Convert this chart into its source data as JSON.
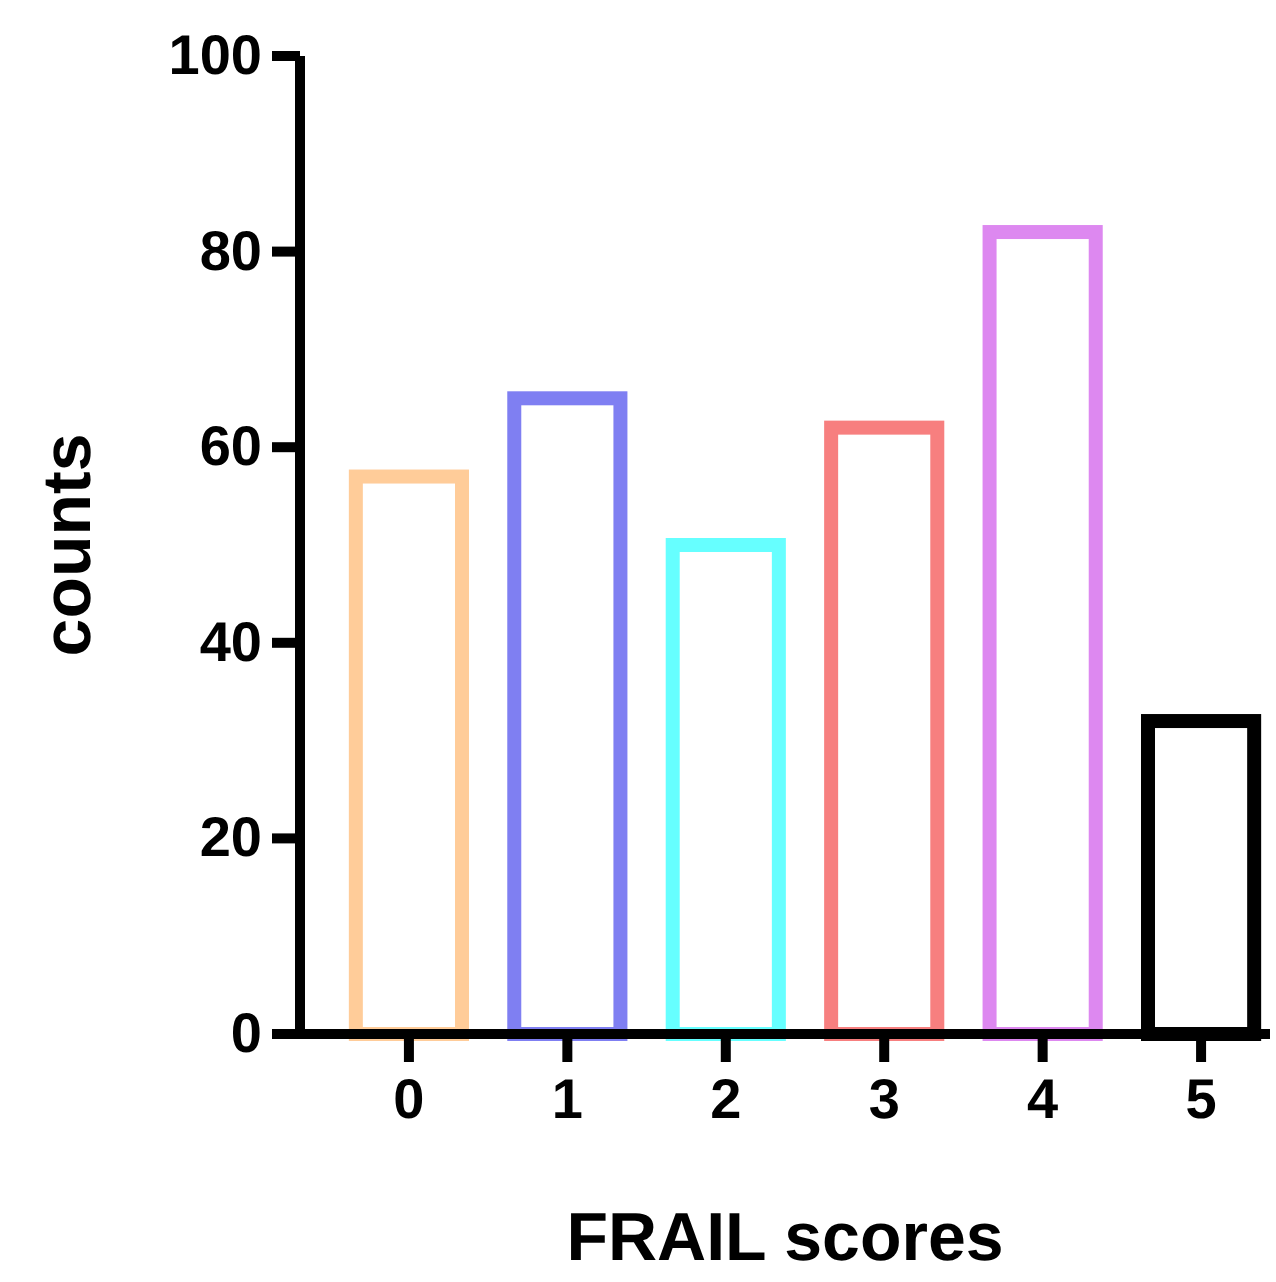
{
  "chart_data": {
    "type": "bar",
    "xlabel": "FRAIL scores",
    "ylabel": "counts",
    "categories": [
      "0",
      "1",
      "2",
      "3",
      "4",
      "5"
    ],
    "values": [
      57,
      65,
      50,
      62,
      82,
      32
    ],
    "colors": [
      "#ffcc99",
      "#7f7ff2",
      "#66ffff",
      "#f77f7f",
      "#dd88f0",
      "#000000"
    ],
    "ylim": [
      0,
      100
    ],
    "yticks": [
      0,
      20,
      40,
      60,
      80,
      100
    ]
  }
}
